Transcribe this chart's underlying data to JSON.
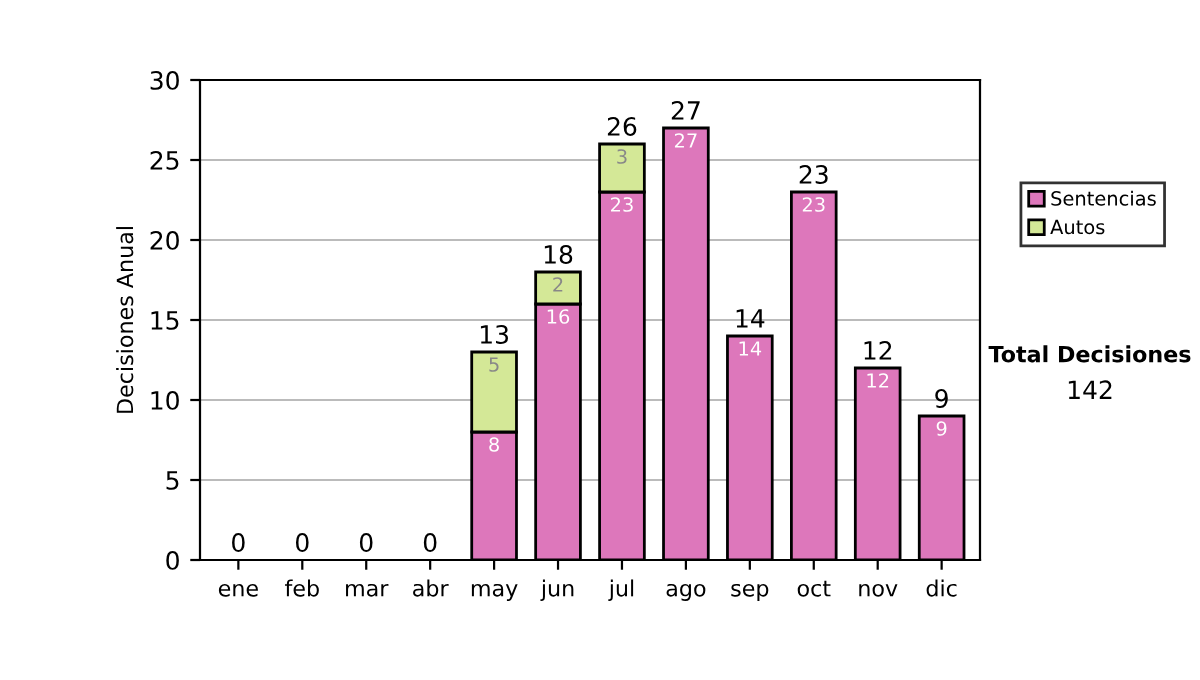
{
  "chart_data": {
    "type": "bar",
    "stacked": true,
    "ylabel": "Decisiones Anual",
    "categories": [
      "ene",
      "feb",
      "mar",
      "abr",
      "may",
      "jun",
      "jul",
      "ago",
      "sep",
      "oct",
      "nov",
      "dic"
    ],
    "series": [
      {
        "name": "Sentencias",
        "color": "#dd77bb",
        "values": [
          0,
          0,
          0,
          0,
          8,
          16,
          23,
          27,
          14,
          23,
          12,
          9
        ],
        "value_labels": [
          null,
          null,
          null,
          null,
          "8",
          "16",
          "23",
          "27",
          "14",
          "23",
          "12",
          "9"
        ]
      },
      {
        "name": "Autos",
        "color": "#d4e897",
        "values": [
          0,
          0,
          0,
          0,
          5,
          2,
          3,
          0,
          0,
          0,
          0,
          0
        ],
        "value_labels": [
          null,
          null,
          null,
          null,
          "5",
          "2",
          "3",
          null,
          null,
          null,
          null,
          null
        ]
      }
    ],
    "totals": [
      "0",
      "0",
      "0",
      "0",
      "13",
      "18",
      "26",
      "27",
      "14",
      "23",
      "12",
      "9"
    ],
    "ylim": [
      0,
      30
    ],
    "yticks": [
      0,
      5,
      10,
      15,
      20,
      25,
      30
    ],
    "grid": "y",
    "legend": "right",
    "annotations": [
      "Total Decisiones",
      "142"
    ]
  }
}
